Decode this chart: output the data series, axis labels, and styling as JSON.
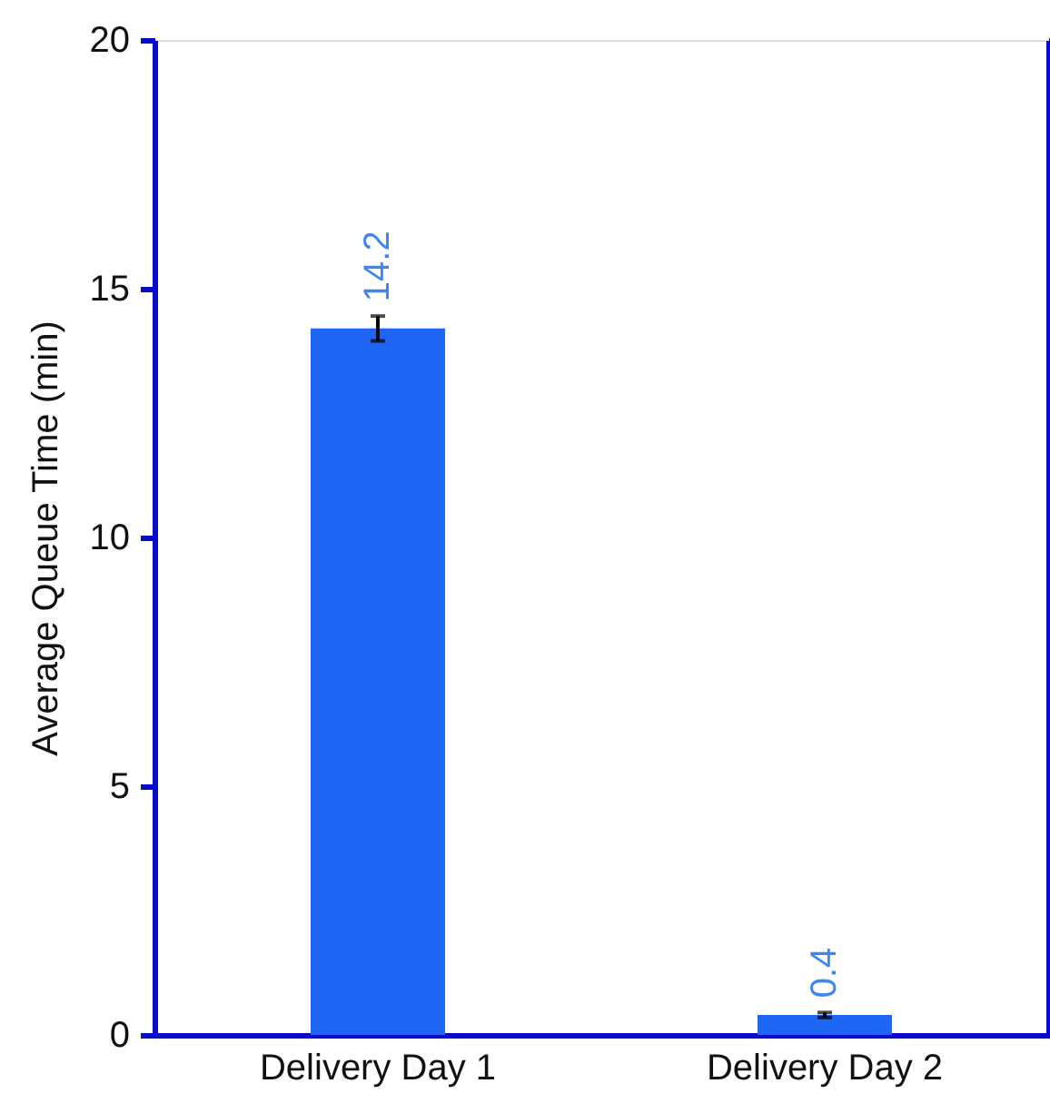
{
  "chart_data": {
    "type": "bar",
    "ylabel": "Average Queue Time (min)",
    "categories": [
      "Delivery Day 1",
      "Delivery Day 2"
    ],
    "values": [
      14.2,
      0.4
    ],
    "errors": [
      0.25,
      0.05
    ],
    "color": "#1f66f5",
    "data_labels": true,
    "ylim": [
      0,
      20
    ],
    "yticks": [
      0,
      5,
      10,
      15,
      20
    ],
    "grid": false
  }
}
